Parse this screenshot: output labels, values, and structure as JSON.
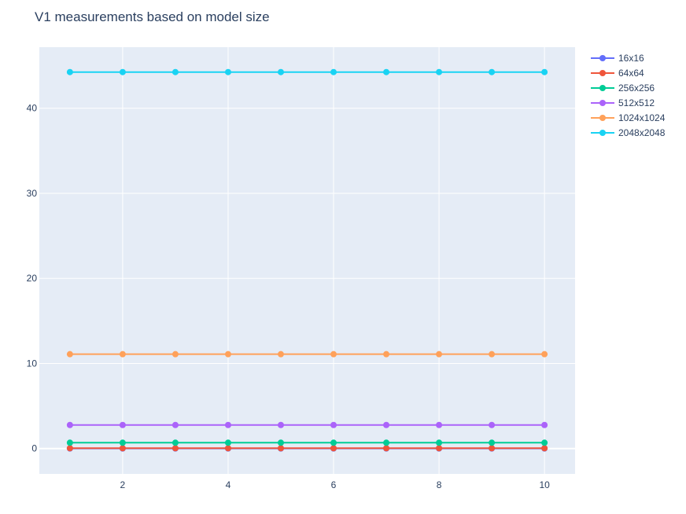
{
  "chart_data": {
    "type": "line",
    "title": "V1 measurements based on model size",
    "xlabel": "",
    "ylabel": "",
    "x": [
      1,
      2,
      3,
      4,
      5,
      6,
      7,
      8,
      9,
      10
    ],
    "xlim": [
      0.42,
      10.58
    ],
    "ylim": [
      -2.98,
      47.18
    ],
    "xticks": [
      2,
      4,
      6,
      8,
      10
    ],
    "yticks": [
      0,
      10,
      20,
      30,
      40
    ],
    "grid": true,
    "legend_position": "top-right",
    "background_color": "#e5ecf6",
    "series": [
      {
        "name": "16x16",
        "color": "#636efa",
        "values": [
          0.01,
          0.01,
          0.01,
          0.01,
          0.01,
          0.01,
          0.01,
          0.01,
          0.01,
          0.01
        ]
      },
      {
        "name": "64x64",
        "color": "#ef553b",
        "values": [
          0.04,
          0.04,
          0.04,
          0.04,
          0.04,
          0.04,
          0.04,
          0.04,
          0.04,
          0.04
        ]
      },
      {
        "name": "256x256",
        "color": "#00cc96",
        "values": [
          0.69,
          0.69,
          0.69,
          0.69,
          0.69,
          0.69,
          0.69,
          0.69,
          0.69,
          0.69
        ]
      },
      {
        "name": "512x512",
        "color": "#ab63fa",
        "values": [
          2.77,
          2.77,
          2.77,
          2.77,
          2.77,
          2.77,
          2.77,
          2.77,
          2.77,
          2.77
        ]
      },
      {
        "name": "1024x1024",
        "color": "#ffa15a",
        "values": [
          11.09,
          11.09,
          11.09,
          11.09,
          11.09,
          11.09,
          11.09,
          11.09,
          11.09,
          11.09
        ]
      },
      {
        "name": "2048x2048",
        "color": "#19d3f3",
        "values": [
          44.25,
          44.25,
          44.25,
          44.25,
          44.25,
          44.25,
          44.25,
          44.25,
          44.25,
          44.25
        ]
      }
    ]
  }
}
